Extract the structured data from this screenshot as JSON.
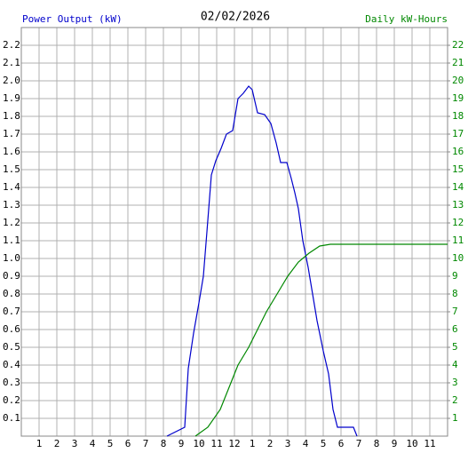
{
  "chart_data": {
    "type": "line",
    "title": "02/02/2026",
    "ylabel": "Power Output (kW)",
    "y2label": "Daily kW-Hours",
    "xlim": [
      0,
      24
    ],
    "xticks": [
      1,
      2,
      3,
      4,
      5,
      6,
      7,
      8,
      9,
      10,
      11,
      12,
      {
        "value": 13,
        "label": "1"
      },
      {
        "value": 14,
        "label": "2"
      },
      {
        "value": 15,
        "label": "3"
      },
      {
        "value": 16,
        "label": "4"
      },
      {
        "value": 17,
        "label": "5"
      },
      {
        "value": 18,
        "label": "6"
      },
      {
        "value": 19,
        "label": "7"
      },
      {
        "value": 20,
        "label": "8"
      },
      {
        "value": 21,
        "label": "9"
      },
      {
        "value": 22,
        "label": "10"
      },
      {
        "value": 23,
        "label": "11"
      }
    ],
    "ylim": [
      0,
      2.3
    ],
    "yticks": [
      0.1,
      0.2,
      0.3,
      0.4,
      0.5,
      0.6,
      0.7,
      0.8,
      0.9,
      {
        "value": 1,
        "label": "1.0"
      },
      1.1,
      1.2,
      1.3,
      1.4,
      1.5,
      1.6,
      1.7,
      1.8,
      1.9,
      {
        "value": 2,
        "label": "2.0"
      },
      2.1,
      2.2
    ],
    "y2lim": [
      0,
      23
    ],
    "y2ticks": [
      1,
      2,
      3,
      4,
      5,
      6,
      7,
      8,
      9,
      10,
      11,
      12,
      13,
      14,
      15,
      16,
      17,
      18,
      19,
      20,
      21,
      22
    ],
    "grid": true,
    "series": [
      {
        "name": "Power Output (kW)",
        "color": "#0000cc",
        "axis": "y",
        "x": [
          8.2,
          9.2,
          9.4,
          9.7,
          10.0,
          10.25,
          10.45,
          10.7,
          10.95,
          11.25,
          11.55,
          11.9,
          12.2,
          12.5,
          12.8,
          13.0,
          13.3,
          13.7,
          14.05,
          14.35,
          14.6,
          14.95,
          15.2,
          15.4,
          15.6,
          15.85,
          16.15,
          16.4,
          16.65,
          17.0,
          17.3,
          17.55,
          17.8,
          18.7,
          18.9
        ],
        "values": [
          0,
          0.05,
          0.38,
          0.58,
          0.75,
          0.9,
          1.15,
          1.47,
          1.55,
          1.62,
          1.7,
          1.72,
          1.9,
          1.93,
          1.97,
          1.95,
          1.82,
          1.81,
          1.76,
          1.65,
          1.54,
          1.54,
          1.45,
          1.37,
          1.28,
          1.1,
          0.95,
          0.8,
          0.65,
          0.48,
          0.35,
          0.15,
          0.05,
          0.05,
          0
        ]
      },
      {
        "name": "Daily kW-Hours",
        "color": "#008800",
        "axis": "y2",
        "x": [
          9.8,
          10.5,
          11.2,
          11.8,
          12.2,
          12.8,
          13.3,
          13.8,
          14.4,
          15.0,
          15.6,
          16.2,
          16.8,
          17.4,
          24
        ],
        "values": [
          0,
          0.5,
          1.5,
          3,
          4,
          5,
          6,
          7,
          8,
          9,
          9.8,
          10.3,
          10.7,
          10.8,
          10.8
        ]
      }
    ]
  }
}
